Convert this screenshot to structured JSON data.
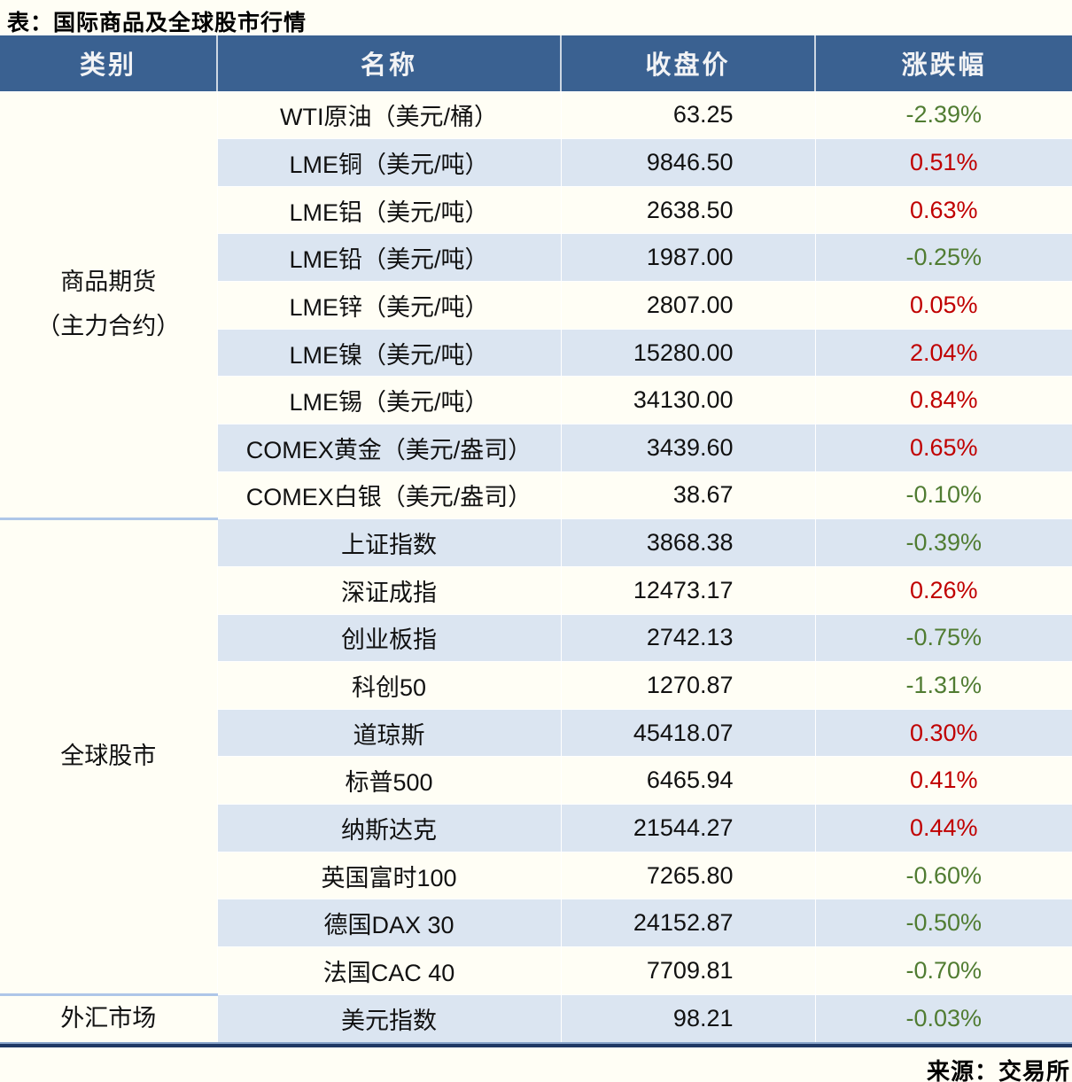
{
  "title": "表：国际商品及全球股市行情",
  "footer": {
    "source": "来源：交易所"
  },
  "colors": {
    "header_bg": "#3A6191",
    "header_text": "#F2F3F5",
    "row_bg": "#FFFEF5",
    "row_alt_bg": "#DBE5F1",
    "up_red": "#C00000",
    "down_green": "#507C32",
    "bottom_border": "#1F3864",
    "section_divider": "#AEC6E8"
  },
  "table": {
    "headers": [
      "类别",
      "名称",
      "收盘价",
      "涨跌幅"
    ],
    "sections": [
      {
        "category": [
          "商品期货",
          "（主力合约）"
        ],
        "rows": [
          {
            "name": "WTI原油（美元/桶）",
            "close": "63.25",
            "change": "-2.39%",
            "direction": "down"
          },
          {
            "name": "LME铜（美元/吨）",
            "close": "9846.50",
            "change": "0.51%",
            "direction": "up"
          },
          {
            "name": "LME铝（美元/吨）",
            "close": "2638.50",
            "change": "0.63%",
            "direction": "up"
          },
          {
            "name": "LME铅（美元/吨）",
            "close": "1987.00",
            "change": "-0.25%",
            "direction": "down"
          },
          {
            "name": "LME锌（美元/吨）",
            "close": "2807.00",
            "change": "0.05%",
            "direction": "up"
          },
          {
            "name": "LME镍（美元/吨）",
            "close": "15280.00",
            "change": "2.04%",
            "direction": "up"
          },
          {
            "name": "LME锡（美元/吨）",
            "close": "34130.00",
            "change": "0.84%",
            "direction": "up"
          },
          {
            "name": "COMEX黄金（美元/盎司）",
            "close": "3439.60",
            "change": "0.65%",
            "direction": "up"
          },
          {
            "name": "COMEX白银（美元/盎司）",
            "close": "38.67",
            "change": "-0.10%",
            "direction": "down"
          }
        ]
      },
      {
        "category": [
          "全球股市"
        ],
        "rows": [
          {
            "name": "上证指数",
            "close": "3868.38",
            "change": "-0.39%",
            "direction": "down"
          },
          {
            "name": "深证成指",
            "close": "12473.17",
            "change": "0.26%",
            "direction": "up"
          },
          {
            "name": "创业板指",
            "close": "2742.13",
            "change": "-0.75%",
            "direction": "down"
          },
          {
            "name": "科创50",
            "close": "1270.87",
            "change": "-1.31%",
            "direction": "down"
          },
          {
            "name": "道琼斯",
            "close": "45418.07",
            "change": "0.30%",
            "direction": "up"
          },
          {
            "name": "标普500",
            "close": "6465.94",
            "change": "0.41%",
            "direction": "up"
          },
          {
            "name": "纳斯达克",
            "close": "21544.27",
            "change": "0.44%",
            "direction": "up"
          },
          {
            "name": "英国富时100",
            "close": "7265.80",
            "change": "-0.60%",
            "direction": "down"
          },
          {
            "name": "德国DAX 30",
            "close": "24152.87",
            "change": "-0.50%",
            "direction": "down"
          },
          {
            "name": "法国CAC 40",
            "close": "7709.81",
            "change": "-0.70%",
            "direction": "down"
          }
        ]
      },
      {
        "category": [
          "外汇市场"
        ],
        "rows": [
          {
            "name": "美元指数",
            "close": "98.21",
            "change": "-0.03%",
            "direction": "down"
          }
        ]
      }
    ]
  },
  "chart_data": {
    "type": "table",
    "title": "表：国际商品及全球股市行情",
    "columns": [
      "类别",
      "名称",
      "收盘价",
      "涨跌幅"
    ],
    "rows": [
      [
        "商品期货（主力合约）",
        "WTI原油（美元/桶）",
        63.25,
        "-2.39%"
      ],
      [
        "商品期货（主力合约）",
        "LME铜（美元/吨）",
        9846.5,
        "0.51%"
      ],
      [
        "商品期货（主力合约）",
        "LME铝（美元/吨）",
        2638.5,
        "0.63%"
      ],
      [
        "商品期货（主力合约）",
        "LME铅（美元/吨）",
        1987.0,
        "-0.25%"
      ],
      [
        "商品期货（主力合约）",
        "LME锌（美元/吨）",
        2807.0,
        "0.05%"
      ],
      [
        "商品期货（主力合约）",
        "LME镍（美元/吨）",
        15280.0,
        "2.04%"
      ],
      [
        "商品期货（主力合约）",
        "LME锡（美元/吨）",
        34130.0,
        "0.84%"
      ],
      [
        "商品期货（主力合约）",
        "COMEX黄金（美元/盎司）",
        3439.6,
        "0.65%"
      ],
      [
        "商品期货（主力合约）",
        "COMEX白银（美元/盎司）",
        38.67,
        "-0.10%"
      ],
      [
        "全球股市",
        "上证指数",
        3868.38,
        "-0.39%"
      ],
      [
        "全球股市",
        "深证成指",
        12473.17,
        "0.26%"
      ],
      [
        "全球股市",
        "创业板指",
        2742.13,
        "-0.75%"
      ],
      [
        "全球股市",
        "科创50",
        1270.87,
        "-1.31%"
      ],
      [
        "全球股市",
        "道琼斯",
        45418.07,
        "0.30%"
      ],
      [
        "全球股市",
        "标普500",
        6465.94,
        "0.41%"
      ],
      [
        "全球股市",
        "纳斯达克",
        21544.27,
        "0.44%"
      ],
      [
        "全球股市",
        "英国富时100",
        7265.8,
        "-0.60%"
      ],
      [
        "全球股市",
        "德国DAX 30",
        24152.87,
        "-0.50%"
      ],
      [
        "全球股市",
        "法国CAC 40",
        7709.81,
        "-0.70%"
      ],
      [
        "外汇市场",
        "美元指数",
        98.21,
        "-0.03%"
      ]
    ],
    "legend": "red = 上涨 (up), green = 下跌 (down)",
    "source": "来源：交易所"
  }
}
